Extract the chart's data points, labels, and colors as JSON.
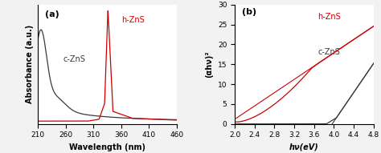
{
  "panel_a": {
    "label": "(a)",
    "xlabel": "Wavelength (nm)",
    "ylabel": "Absorbance (a.u.)",
    "xlim": [
      210,
      460
    ],
    "ylim": [
      0,
      3.8
    ],
    "xticks": [
      210,
      260,
      310,
      360,
      410,
      460
    ],
    "c_zns_label": "c-ZnS",
    "h_zns_label": "h-ZnS",
    "c_zns_color": "#3a3a3a",
    "h_zns_color": "#cc0000"
  },
  "panel_b": {
    "label": "(b)",
    "xlabel": "hν(eV)",
    "ylabel": "(αhν)²",
    "xlim": [
      2.0,
      4.8
    ],
    "ylim": [
      0,
      30
    ],
    "xticks": [
      2.0,
      2.4,
      2.8,
      3.2,
      3.6,
      4.0,
      4.4,
      4.8
    ],
    "yticks": [
      0,
      5,
      10,
      15,
      20,
      25,
      30
    ],
    "c_zns_label": "c-ZnS",
    "h_zns_label": "h-ZnS",
    "c_zns_color": "#3a3a3a",
    "h_zns_color": "#cc0000"
  },
  "fig_bg": "#f2f2f2",
  "axes_bg": "#ffffff"
}
